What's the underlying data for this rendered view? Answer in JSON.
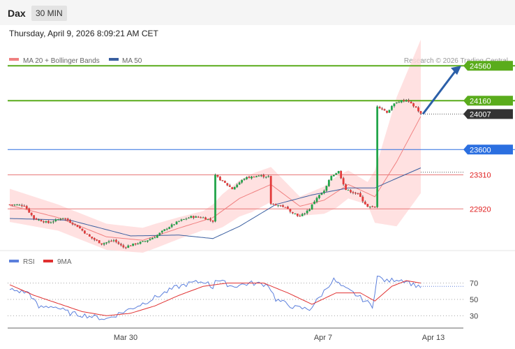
{
  "header": {
    "symbol": "Dax",
    "timeframe": "30 MIN",
    "datetime": "Thursday, April 9, 2026 8:09:21 AM CET"
  },
  "legend": {
    "ma20_label": "MA 20 + Bollinger Bands",
    "ma50_label": "MA 50",
    "credit": "Research © 2026 Trading Central",
    "rsi_label": "RSI",
    "rsi_ma_label": "9MA"
  },
  "colors": {
    "up": "#22a54a",
    "down": "#e23b3b",
    "wick": "#333333",
    "ma20": "#f08080",
    "ma50": "#3a5fa0",
    "band": "#ffd9d9",
    "resistance": "#5aac1c",
    "support": "#e87878",
    "pivot": "#2b6fe0",
    "current": "#333333",
    "arrow": "#2b5fa8",
    "rsi": "#5b7fdc",
    "rsi_ma": "#e03030"
  },
  "chart_data": [
    {
      "type": "candlestick",
      "title": "Dax 30 MIN",
      "ylim": [
        22450,
        24850
      ],
      "x_ticks": [
        "Mar 30",
        "Apr 7",
        "Apr 13"
      ],
      "levels": [
        {
          "value": 24560,
          "label": "24560",
          "kind": "resistance"
        },
        {
          "value": 24160,
          "label": "24160",
          "kind": "resistance"
        },
        {
          "value": 24007,
          "label": "24007",
          "kind": "current"
        },
        {
          "value": 23600,
          "label": "23600",
          "kind": "pivot"
        },
        {
          "value": 23310,
          "label": "23310",
          "kind": "support"
        },
        {
          "value": 22920,
          "label": "22920",
          "kind": "support"
        }
      ],
      "close_keypoints": [
        [
          0,
          22970
        ],
        [
          6,
          22960
        ],
        [
          10,
          22810
        ],
        [
          16,
          22760
        ],
        [
          22,
          22820
        ],
        [
          28,
          22720
        ],
        [
          33,
          22600
        ],
        [
          38,
          22520
        ],
        [
          43,
          22560
        ],
        [
          47,
          22480
        ],
        [
          52,
          22520
        ],
        [
          56,
          22550
        ],
        [
          60,
          22600
        ],
        [
          65,
          22700
        ],
        [
          70,
          22780
        ],
        [
          75,
          22830
        ],
        [
          80,
          22820
        ],
        [
          84,
          22780
        ],
        [
          85,
          23300
        ],
        [
          92,
          23150
        ],
        [
          97,
          23270
        ],
        [
          103,
          23300
        ],
        [
          107,
          23290
        ],
        [
          108,
          22980
        ],
        [
          113,
          22950
        ],
        [
          117,
          22880
        ],
        [
          120,
          22830
        ],
        [
          124,
          22920
        ],
        [
          127,
          23050
        ],
        [
          130,
          23120
        ],
        [
          133,
          23300
        ],
        [
          136,
          23350
        ],
        [
          139,
          23140
        ],
        [
          144,
          23090
        ],
        [
          148,
          22940
        ],
        [
          151,
          22940
        ],
        [
          152,
          24100
        ],
        [
          156,
          24030
        ],
        [
          160,
          24150
        ],
        [
          164,
          24160
        ],
        [
          168,
          24080
        ],
        [
          170,
          24007
        ]
      ],
      "ma20_keypoints": [
        [
          0,
          22960
        ],
        [
          20,
          22820
        ],
        [
          40,
          22600
        ],
        [
          55,
          22560
        ],
        [
          70,
          22700
        ],
        [
          84,
          22820
        ],
        [
          95,
          23040
        ],
        [
          108,
          23200
        ],
        [
          120,
          22950
        ],
        [
          130,
          23020
        ],
        [
          140,
          23200
        ],
        [
          151,
          23060
        ],
        [
          160,
          23460
        ],
        [
          170,
          23980
        ]
      ],
      "ma50_keypoints": [
        [
          0,
          22810
        ],
        [
          25,
          22790
        ],
        [
          50,
          22610
        ],
        [
          70,
          22620
        ],
        [
          84,
          22580
        ],
        [
          95,
          22720
        ],
        [
          110,
          22970
        ],
        [
          125,
          23080
        ],
        [
          140,
          23160
        ],
        [
          151,
          23160
        ],
        [
          160,
          23270
        ],
        [
          170,
          23390
        ]
      ],
      "band_width_keypoints": [
        [
          0,
          190
        ],
        [
          20,
          150
        ],
        [
          40,
          150
        ],
        [
          60,
          140
        ],
        [
          80,
          110
        ],
        [
          88,
          190
        ],
        [
          100,
          220
        ],
        [
          108,
          200
        ],
        [
          120,
          110
        ],
        [
          135,
          180
        ],
        [
          148,
          130
        ],
        [
          151,
          300
        ],
        [
          160,
          740
        ],
        [
          170,
          880
        ]
      ],
      "forecast_arrow": {
        "from_value": 24007,
        "to_value": 24560
      }
    },
    {
      "type": "line",
      "title": "RSI",
      "ylim": [
        20,
        85
      ],
      "y_ticks": [
        30,
        50,
        70
      ],
      "series": [
        {
          "name": "RSI",
          "keypoints": [
            [
              0,
              62
            ],
            [
              8,
              58
            ],
            [
              12,
              40
            ],
            [
              18,
              42
            ],
            [
              25,
              33
            ],
            [
              32,
              30
            ],
            [
              40,
              26
            ],
            [
              48,
              36
            ],
            [
              55,
              45
            ],
            [
              62,
              55
            ],
            [
              68,
              64
            ],
            [
              75,
              70
            ],
            [
              81,
              72
            ],
            [
              84,
              64
            ],
            [
              85,
              75
            ],
            [
              92,
              66
            ],
            [
              100,
              70
            ],
            [
              107,
              68
            ],
            [
              110,
              50
            ],
            [
              118,
              40
            ],
            [
              124,
              38
            ],
            [
              128,
              52
            ],
            [
              132,
              68
            ],
            [
              134,
              74
            ],
            [
              138,
              64
            ],
            [
              142,
              58
            ],
            [
              146,
              50
            ],
            [
              150,
              42
            ],
            [
              152,
              78
            ],
            [
              156,
              72
            ],
            [
              160,
              75
            ],
            [
              164,
              73
            ],
            [
              167,
              68
            ],
            [
              170,
              66
            ]
          ]
        },
        {
          "name": "9MA",
          "keypoints": [
            [
              0,
              68
            ],
            [
              10,
              55
            ],
            [
              20,
              45
            ],
            [
              30,
              35
            ],
            [
              40,
              30
            ],
            [
              50,
              33
            ],
            [
              60,
              42
            ],
            [
              70,
              55
            ],
            [
              80,
              66
            ],
            [
              90,
              70
            ],
            [
              105,
              70
            ],
            [
              115,
              58
            ],
            [
              125,
              44
            ],
            [
              135,
              58
            ],
            [
              145,
              58
            ],
            [
              151,
              48
            ],
            [
              158,
              66
            ],
            [
              164,
              73
            ],
            [
              170,
              70
            ]
          ]
        }
      ]
    }
  ]
}
